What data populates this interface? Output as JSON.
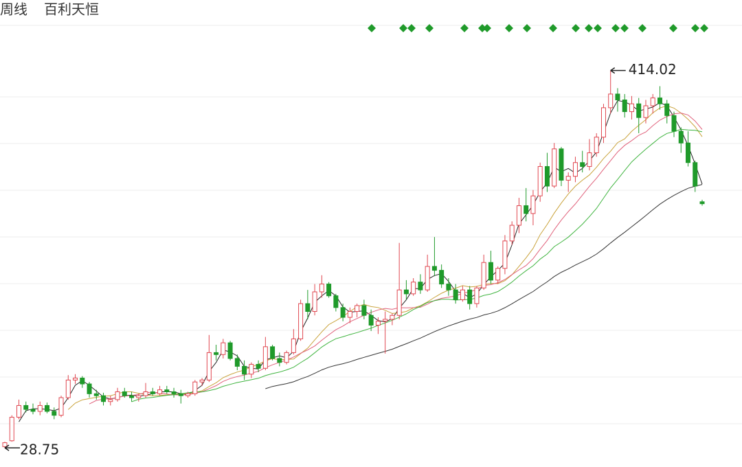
{
  "chart_data": {
    "type": "candlestick",
    "period_label": "周线",
    "title": "百利天恒",
    "up_color": "#e0464f",
    "down_color": "#1f9a2a",
    "ylim": [
      12,
      486
    ],
    "ma": [
      {
        "period": 3,
        "color": "#222222"
      },
      {
        "period": 10,
        "color": "#c9a23a"
      },
      {
        "period": 13,
        "color": "#e0607a"
      },
      {
        "period": 19,
        "color": "#3fb43f"
      },
      {
        "period": 38,
        "color": "#333333"
      }
    ],
    "candles": [
      [
        30,
        35,
        28.75,
        34
      ],
      [
        36,
        62,
        35,
        60
      ],
      [
        60,
        78,
        58,
        72
      ],
      [
        72,
        76,
        65,
        68
      ],
      [
        68,
        74,
        63,
        66
      ],
      [
        66,
        76,
        62,
        72
      ],
      [
        72,
        75,
        64,
        66
      ],
      [
        66,
        70,
        58,
        62
      ],
      [
        62,
        82,
        60,
        80
      ],
      [
        80,
        103,
        78,
        98
      ],
      [
        98,
        104,
        94,
        100
      ],
      [
        100,
        102,
        90,
        94
      ],
      [
        94,
        96,
        80,
        84
      ],
      [
        84,
        88,
        78,
        82
      ],
      [
        82,
        85,
        72,
        76
      ],
      [
        76,
        82,
        72,
        78
      ],
      [
        78,
        90,
        76,
        86
      ],
      [
        86,
        90,
        80,
        82
      ],
      [
        82,
        86,
        76,
        80
      ],
      [
        80,
        84,
        76,
        82
      ],
      [
        82,
        95,
        80,
        86
      ],
      [
        86,
        90,
        82,
        84
      ],
      [
        84,
        92,
        82,
        88
      ],
      [
        88,
        92,
        84,
        86
      ],
      [
        86,
        90,
        80,
        84
      ],
      [
        84,
        88,
        74,
        82
      ],
      [
        82,
        86,
        80,
        84
      ],
      [
        84,
        98,
        82,
        96
      ],
      [
        96,
        100,
        92,
        98
      ],
      [
        98,
        144,
        96,
        126
      ],
      [
        126,
        134,
        118,
        124
      ],
      [
        124,
        140,
        120,
        136
      ],
      [
        136,
        138,
        118,
        120
      ],
      [
        120,
        124,
        108,
        112
      ],
      [
        112,
        118,
        98,
        104
      ],
      [
        104,
        116,
        100,
        114
      ],
      [
        114,
        118,
        106,
        110
      ],
      [
        110,
        142,
        108,
        132
      ],
      [
        132,
        134,
        118,
        120
      ],
      [
        120,
        126,
        112,
        116
      ],
      [
        116,
        128,
        114,
        126
      ],
      [
        126,
        150,
        124,
        140
      ],
      [
        140,
        180,
        138,
        176
      ],
      [
        176,
        190,
        160,
        168
      ],
      [
        168,
        196,
        164,
        188
      ],
      [
        188,
        205,
        182,
        196
      ],
      [
        196,
        198,
        182,
        184
      ],
      [
        184,
        186,
        168,
        172
      ],
      [
        172,
        176,
        158,
        162
      ],
      [
        162,
        172,
        156,
        168
      ],
      [
        168,
        176,
        162,
        174
      ],
      [
        174,
        180,
        160,
        164
      ],
      [
        164,
        170,
        148,
        154
      ],
      [
        154,
        162,
        145,
        158
      ],
      [
        158,
        168,
        125,
        160
      ],
      [
        160,
        166,
        154,
        164
      ],
      [
        164,
        238,
        160,
        190
      ],
      [
        190,
        200,
        180,
        186
      ],
      [
        186,
        202,
        184,
        198
      ],
      [
        198,
        206,
        186,
        190
      ],
      [
        190,
        226,
        188,
        214
      ],
      [
        214,
        244,
        204,
        210
      ],
      [
        210,
        216,
        192,
        196
      ],
      [
        196,
        202,
        184,
        190
      ],
      [
        190,
        196,
        176,
        180
      ],
      [
        180,
        194,
        178,
        190
      ],
      [
        190,
        194,
        170,
        176
      ],
      [
        176,
        194,
        172,
        192
      ],
      [
        192,
        226,
        190,
        218
      ],
      [
        218,
        230,
        196,
        200
      ],
      [
        200,
        214,
        196,
        212
      ],
      [
        212,
        246,
        206,
        240
      ],
      [
        240,
        260,
        236,
        256
      ],
      [
        256,
        284,
        248,
        276
      ],
      [
        276,
        294,
        260,
        268
      ],
      [
        268,
        292,
        256,
        286
      ],
      [
        286,
        320,
        280,
        316
      ],
      [
        316,
        330,
        290,
        296
      ],
      [
        296,
        340,
        294,
        334
      ],
      [
        334,
        336,
        296,
        302
      ],
      [
        302,
        310,
        290,
        306
      ],
      [
        306,
        326,
        300,
        320
      ],
      [
        320,
        332,
        310,
        316
      ],
      [
        316,
        344,
        312,
        330
      ],
      [
        330,
        350,
        326,
        346
      ],
      [
        346,
        380,
        340,
        376
      ],
      [
        376,
        414.02,
        370,
        390
      ],
      [
        390,
        396,
        372,
        384
      ],
      [
        384,
        390,
        366,
        372
      ],
      [
        372,
        388,
        364,
        380
      ],
      [
        380,
        386,
        350,
        366
      ],
      [
        366,
        384,
        360,
        378
      ],
      [
        378,
        390,
        370,
        386
      ],
      [
        386,
        398,
        374,
        380
      ],
      [
        380,
        384,
        360,
        368
      ],
      [
        368,
        372,
        346,
        352
      ],
      [
        352,
        356,
        330,
        340
      ],
      [
        340,
        352,
        316,
        320
      ],
      [
        320,
        322,
        290,
        296
      ],
      [
        280,
        282,
        276,
        278
      ]
    ]
  }
}
